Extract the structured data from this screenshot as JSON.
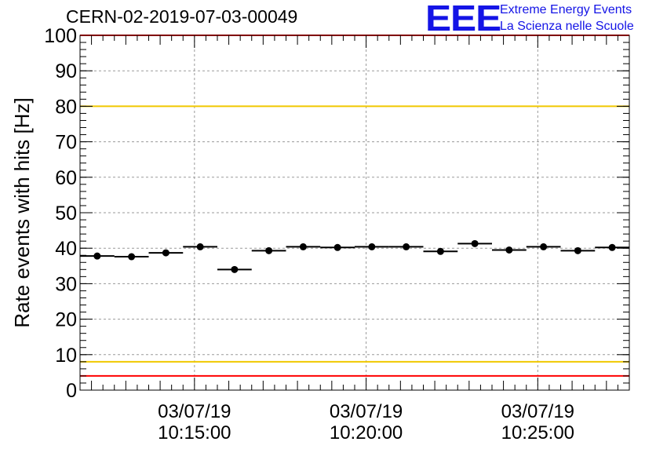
{
  "header": {
    "title": "CERN-02-2019-07-03-00049",
    "logo_mark": "EEE",
    "logo_line1": "Extreme Energy Events",
    "logo_line2": "La Scienza nelle Scuole"
  },
  "chart_data": {
    "type": "scatter",
    "title": "CERN-02-2019-07-03-00049",
    "xlabel": "",
    "ylabel": "Rate events with hits [Hz]",
    "ylim": [
      0,
      100
    ],
    "xlim": [
      "2019-07-03 10:11:40",
      "2019-07-03 10:27:40"
    ],
    "yticks": [
      "0",
      "10",
      "20",
      "30",
      "40",
      "50",
      "60",
      "70",
      "80",
      "90",
      "100"
    ],
    "xticks": [
      {
        "time": "10:15:00",
        "date_label": "03/07/19",
        "time_label": "10:15:00"
      },
      {
        "time": "10:20:00",
        "date_label": "03/07/19",
        "time_label": "10:20:00"
      },
      {
        "time": "10:25:00",
        "date_label": "03/07/19",
        "time_label": "10:25:00"
      }
    ],
    "grid": true,
    "colors": {
      "points": "#000000",
      "red_line": "#ff0000",
      "yellow_line": "#f0c800",
      "grid": "#9a9a9a"
    },
    "reference_lines": [
      {
        "y": 100,
        "color": "#ff0000"
      },
      {
        "y": 80,
        "color": "#f0c800"
      },
      {
        "y": 8,
        "color": "#f0c800"
      },
      {
        "y": 4,
        "color": "#ff0000"
      }
    ],
    "series": [
      {
        "x": [
          "10:12:10",
          "10:13:10",
          "10:14:10",
          "10:15:10",
          "10:16:10",
          "10:17:10",
          "10:18:10",
          "10:19:10",
          "10:20:10",
          "10:21:10",
          "10:22:10",
          "10:23:10",
          "10:24:10",
          "10:25:10",
          "10:26:10",
          "10:27:10"
        ],
        "y": [
          37.8,
          37.6,
          38.7,
          40.4,
          34.0,
          39.3,
          40.4,
          40.2,
          40.4,
          40.4,
          39.1,
          41.3,
          39.5,
          40.4,
          39.3,
          40.2
        ],
        "x_error_seconds": 30
      }
    ]
  }
}
